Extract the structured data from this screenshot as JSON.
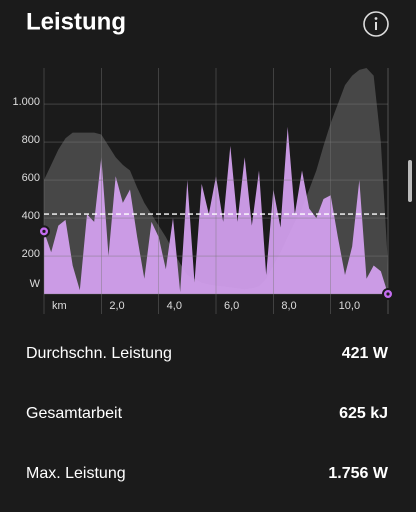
{
  "header": {
    "title": "Leistung"
  },
  "chart_data": {
    "type": "area",
    "x": [
      0,
      0.25,
      0.5,
      0.75,
      1,
      1.25,
      1.5,
      1.75,
      2,
      2.25,
      2.5,
      2.75,
      3,
      3.25,
      3.5,
      3.75,
      4,
      4.25,
      4.5,
      4.75,
      5,
      5.25,
      5.5,
      5.75,
      6,
      6.25,
      6.5,
      6.75,
      7,
      7.25,
      7.5,
      7.75,
      8,
      8.25,
      8.5,
      8.75,
      9,
      9.25,
      9.5,
      9.75,
      10,
      10.25,
      10.5,
      10.75,
      11,
      11.25,
      11.5,
      11.75,
      12
    ],
    "series": [
      {
        "color": "#474747",
        "values": [
          600,
          680,
          760,
          820,
          850,
          850,
          850,
          850,
          840,
          780,
          720,
          680,
          650,
          560,
          480,
          420,
          360,
          300,
          230,
          160,
          100,
          80,
          60,
          50,
          45,
          40,
          35,
          30,
          25,
          30,
          40,
          80,
          150,
          220,
          300,
          380,
          450,
          550,
          650,
          780,
          900,
          1000,
          1100,
          1150,
          1180,
          1190,
          1150,
          800,
          150
        ]
      },
      {
        "color": "#d7a3f3",
        "values": [
          330,
          220,
          360,
          390,
          150,
          20,
          420,
          380,
          720,
          200,
          620,
          480,
          550,
          300,
          80,
          380,
          300,
          130,
          400,
          10,
          600,
          60,
          580,
          420,
          620,
          380,
          780,
          380,
          720,
          360,
          650,
          100,
          550,
          350,
          880,
          420,
          650,
          450,
          400,
          500,
          520,
          300,
          100,
          250,
          600,
          80,
          150,
          120,
          0
        ]
      }
    ],
    "average_line": 421,
    "xlim": [
      0,
      12
    ],
    "xticks": [
      {
        "value": 0,
        "label": "km"
      },
      {
        "value": 2,
        "label": "2,0"
      },
      {
        "value": 4,
        "label": "4,0"
      },
      {
        "value": 6,
        "label": "6,0"
      },
      {
        "value": 8,
        "label": "8,0"
      },
      {
        "value": 10,
        "label": "10,0"
      }
    ],
    "ylim": [
      0,
      1190
    ],
    "yticks": [
      {
        "value": 0,
        "label": "W"
      },
      200,
      400,
      600,
      800,
      {
        "value": 1000,
        "label": "1.000"
      }
    ],
    "grid": true
  },
  "stats": [
    {
      "label": "Durchschn. Leistung",
      "value": "421 W"
    },
    {
      "label": "Gesamtarbeit",
      "value": "625 kJ"
    },
    {
      "label": "Max. Leistung",
      "value": "1.756 W"
    }
  ]
}
